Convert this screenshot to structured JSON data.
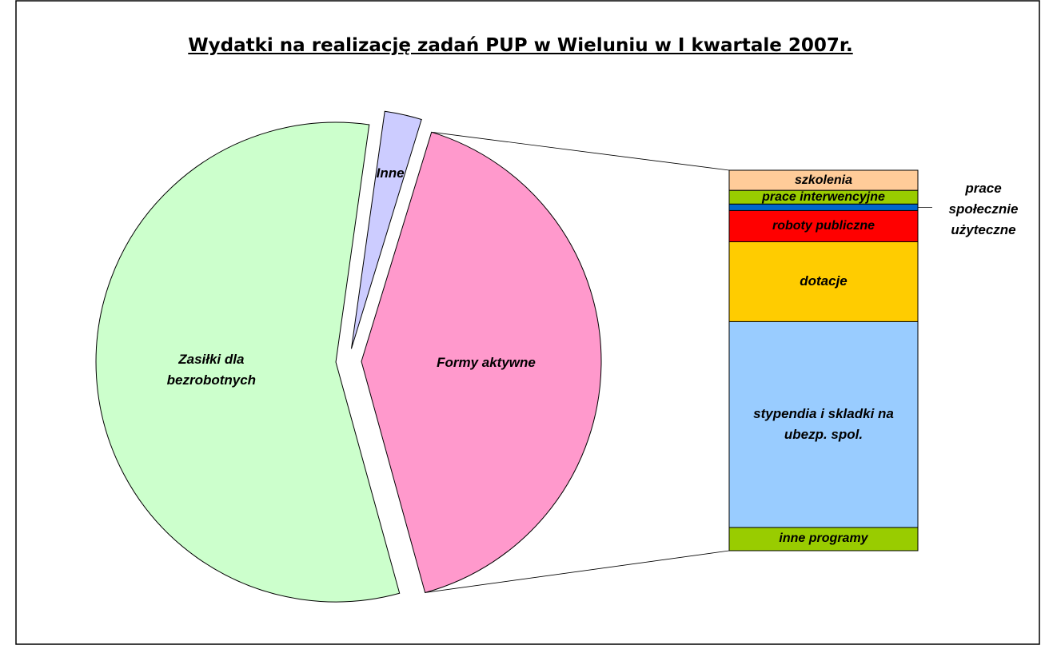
{
  "chart_data": {
    "type": "pie",
    "title": "Wydatki na realizację zadań PUP w Wieluniu w I kwartale 2007r.",
    "categories": [
      "Formy aktywne",
      "Zasiłki dla bezrobotnych",
      "Inne"
    ],
    "values": [
      41,
      56.5,
      2.5
    ],
    "colors": [
      "#ff99cc",
      "#ccffcc",
      "#ccccff"
    ],
    "bar": {
      "categories": [
        "szkolenia",
        "prace interwencyjne",
        "prace społecznie użyteczne",
        "roboty publiczne",
        "dotacje",
        "stypendia i skladki na ubezp. spol.",
        "inne programy"
      ],
      "values": [
        5.3,
        3.6,
        1.7,
        8.2,
        21,
        54.1,
        6.1
      ],
      "colors": [
        "#ffcc99",
        "#99cc00",
        "#0066cc",
        "#ff0000",
        "#ffcc00",
        "#99ccff",
        "#99cc00"
      ]
    }
  }
}
